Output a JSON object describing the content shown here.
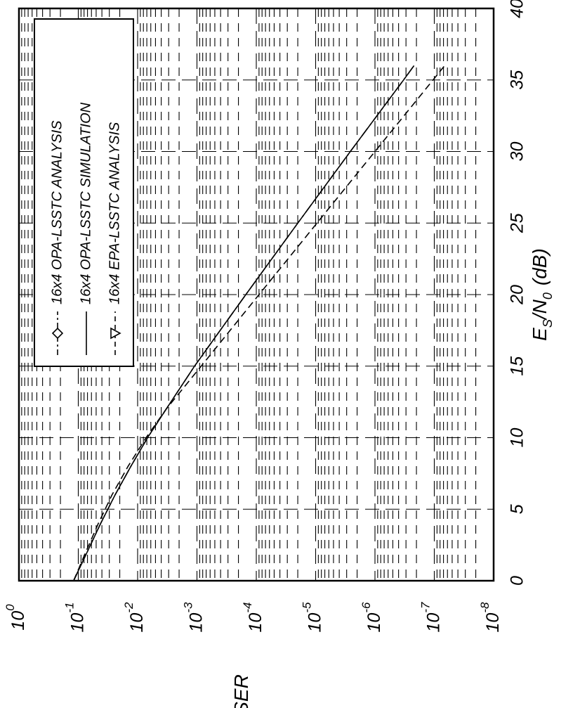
{
  "chart_data": {
    "type": "line",
    "xlabel": "E_S/N_0 (dB)",
    "xlabel_main": "E",
    "xlabel_sub1": "S",
    "xlabel_mid": "/N",
    "xlabel_sub2": "0",
    "xlabel_unit": "(dB)",
    "ylabel": "SER",
    "xlim": [
      0,
      40
    ],
    "ylim": [
      1e-08,
      1
    ],
    "yscale": "log",
    "grid": true,
    "legend_position": "top-left",
    "x_ticks": [
      "0",
      "5",
      "10",
      "15",
      "20",
      "25",
      "30",
      "35",
      "40"
    ],
    "y_ticks": [
      {
        "base": "10",
        "exp": "0"
      },
      {
        "base": "10",
        "exp": "-1"
      },
      {
        "base": "10",
        "exp": "-2"
      },
      {
        "base": "10",
        "exp": "-3"
      },
      {
        "base": "10",
        "exp": "-4"
      },
      {
        "base": "10",
        "exp": "-5"
      },
      {
        "base": "10",
        "exp": "-6"
      },
      {
        "base": "10",
        "exp": "-7"
      },
      {
        "base": "10",
        "exp": "-8"
      }
    ],
    "series": [
      {
        "name": "16x4 OPA-LSSTC ANALYSIS",
        "style": "dash-dot",
        "marker": "diamond",
        "color": "#000000",
        "x": [
          0,
          2,
          4,
          6,
          8,
          10,
          12,
          15,
          20,
          25,
          30,
          35,
          36
        ],
        "y": [
          0.12,
          0.071,
          0.042,
          0.024,
          0.013,
          0.0068,
          0.0033,
          0.0011,
          0.00015,
          2e-05,
          2.6e-06,
          3.3e-07,
          2.2e-07
        ]
      },
      {
        "name": "16x4 OPA-LSSTC SIMULATION",
        "style": "solid",
        "marker": "none",
        "color": "#000000",
        "x": [
          0,
          2,
          4,
          6,
          8,
          10,
          12,
          15,
          20,
          25,
          30,
          35,
          36
        ],
        "y": [
          0.12,
          0.071,
          0.042,
          0.024,
          0.013,
          0.0068,
          0.0033,
          0.0011,
          0.00015,
          2e-05,
          2.6e-06,
          3.3e-07,
          2.2e-07
        ]
      },
      {
        "name": "16x4 EPA-LSSTC ANALYSIS",
        "style": "dashed",
        "marker": "triangle-down",
        "color": "#000000",
        "x": [
          0,
          2,
          4,
          6,
          8,
          10,
          12,
          15,
          20,
          25,
          30,
          35,
          36
        ],
        "y": [
          0.12,
          0.075,
          0.046,
          0.027,
          0.0145,
          0.0072,
          0.0033,
          0.00085,
          9e-05,
          9.5e-06,
          1e-06,
          1.05e-07,
          6.7e-08
        ]
      }
    ]
  }
}
